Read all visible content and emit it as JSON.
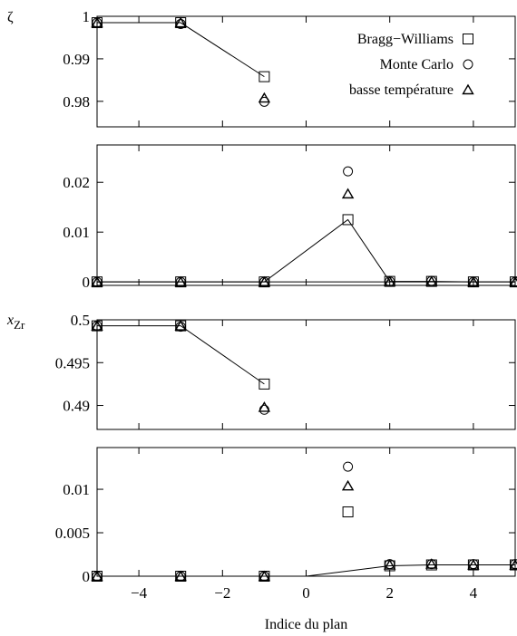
{
  "chart_data": [
    {
      "type": "scatter",
      "ylabel": "ζ",
      "ylim": [
        0.974,
        1.0
      ],
      "yticks": [
        "1",
        "0.99",
        "0.98"
      ],
      "yticks_values": [
        1.0,
        0.99,
        0.98
      ],
      "xlim": [
        -5,
        5
      ],
      "series": [
        {
          "name": "Bragg−Williams",
          "marker": "square",
          "line": true,
          "x": [
            -5,
            -3,
            -1
          ],
          "y": [
            0.9985,
            0.9985,
            0.9858
          ]
        },
        {
          "name": "Monte Carlo",
          "marker": "circle",
          "line": false,
          "x": [
            -5,
            -3,
            -1
          ],
          "y": [
            0.9985,
            0.9982,
            0.9799
          ]
        },
        {
          "name": "basse température",
          "marker": "triangle",
          "line": false,
          "x": [
            -5,
            -3,
            -1
          ],
          "y": [
            0.9985,
            0.9985,
            0.9808
          ]
        }
      ],
      "legend": "top-right"
    },
    {
      "type": "scatter",
      "ylim": [
        -0.0007,
        0.0275
      ],
      "yticks": [
        "0.02",
        "0.01",
        "0"
      ],
      "yticks_values": [
        0.02,
        0.01,
        0
      ],
      "xlim": [
        -5,
        5
      ],
      "series": [
        {
          "name": "Bragg−Williams",
          "marker": "square",
          "line": true,
          "x": [
            -5,
            -3,
            -1,
            1,
            2,
            3,
            4,
            5
          ],
          "y": [
            0,
            0,
            0,
            0.0125,
            0.0001,
            0.0001,
            0,
            0
          ]
        },
        {
          "name": "Monte Carlo",
          "marker": "circle",
          "line": false,
          "x": [
            -5,
            -3,
            -1,
            1,
            2,
            3,
            4,
            5
          ],
          "y": [
            0,
            0,
            0,
            0.0222,
            0.0001,
            0.0002,
            0,
            0
          ]
        },
        {
          "name": "basse température",
          "marker": "triangle",
          "line": false,
          "x": [
            -5,
            -3,
            -1,
            1,
            2,
            3,
            4,
            5
          ],
          "y": [
            0,
            0,
            0,
            0.0177,
            0.0001,
            0.0001,
            0,
            0
          ]
        }
      ]
    },
    {
      "type": "scatter",
      "ylabel": "x_Zr",
      "ylabel_main": "x",
      "ylabel_sub": "Zr",
      "ylim": [
        0.4872,
        0.5
      ],
      "yticks": [
        "0.5",
        "0.495",
        "0.49"
      ],
      "yticks_values": [
        0.5,
        0.495,
        0.49
      ],
      "xlim": [
        -5,
        5
      ],
      "series": [
        {
          "name": "Bragg−Williams",
          "marker": "square",
          "line": true,
          "x": [
            -5,
            -3,
            -1
          ],
          "y": [
            0.4993,
            0.4993,
            0.4925
          ]
        },
        {
          "name": "Monte Carlo",
          "marker": "circle",
          "line": false,
          "x": [
            -5,
            -3,
            -1
          ],
          "y": [
            0.4993,
            0.4992,
            0.4895
          ]
        },
        {
          "name": "basse température",
          "marker": "triangle",
          "line": false,
          "x": [
            -5,
            -3,
            -1
          ],
          "y": [
            0.4993,
            0.4993,
            0.4898
          ]
        }
      ]
    },
    {
      "type": "scatter",
      "xlabel": "Indice du plan",
      "ylim": [
        0,
        0.0148
      ],
      "yticks": [
        "0.01",
        "0.005",
        "0"
      ],
      "yticks_values": [
        0.01,
        0.005,
        0
      ],
      "xlim": [
        -5,
        5
      ],
      "xticks": [
        "−4",
        "−2",
        "0",
        "2",
        "4"
      ],
      "xticks_values": [
        -4,
        -2,
        0,
        2,
        4
      ],
      "series": [
        {
          "name": "Bragg−Williams",
          "marker": "square",
          "line": true,
          "x": [
            -5,
            -3,
            -1,
            1,
            2,
            3,
            4,
            5
          ],
          "y": [
            0,
            0,
            0,
            0.0074,
            0.0012,
            0.0013,
            0.0013,
            0.0013
          ],
          "x_line2": [
            -5,
            -3,
            -1,
            0,
            2,
            3,
            4,
            5
          ],
          "y_line2": [
            0,
            0,
            0,
            0,
            0.0012,
            0.0013,
            0.0013,
            0.0013
          ]
        },
        {
          "name": "Monte Carlo",
          "marker": "circle",
          "line": false,
          "x": [
            -5,
            -3,
            -1,
            1,
            2,
            3,
            4,
            5
          ],
          "y": [
            0,
            0,
            0,
            0.0126,
            0.0014,
            0.0014,
            0.0014,
            0.0014
          ]
        },
        {
          "name": "basse température",
          "marker": "triangle",
          "line": false,
          "x": [
            -5,
            -3,
            -1,
            1,
            2,
            3,
            4,
            5
          ],
          "y": [
            0,
            0,
            0,
            0.0104,
            0.0013,
            0.0014,
            0.0013,
            0.0013
          ]
        }
      ]
    }
  ]
}
